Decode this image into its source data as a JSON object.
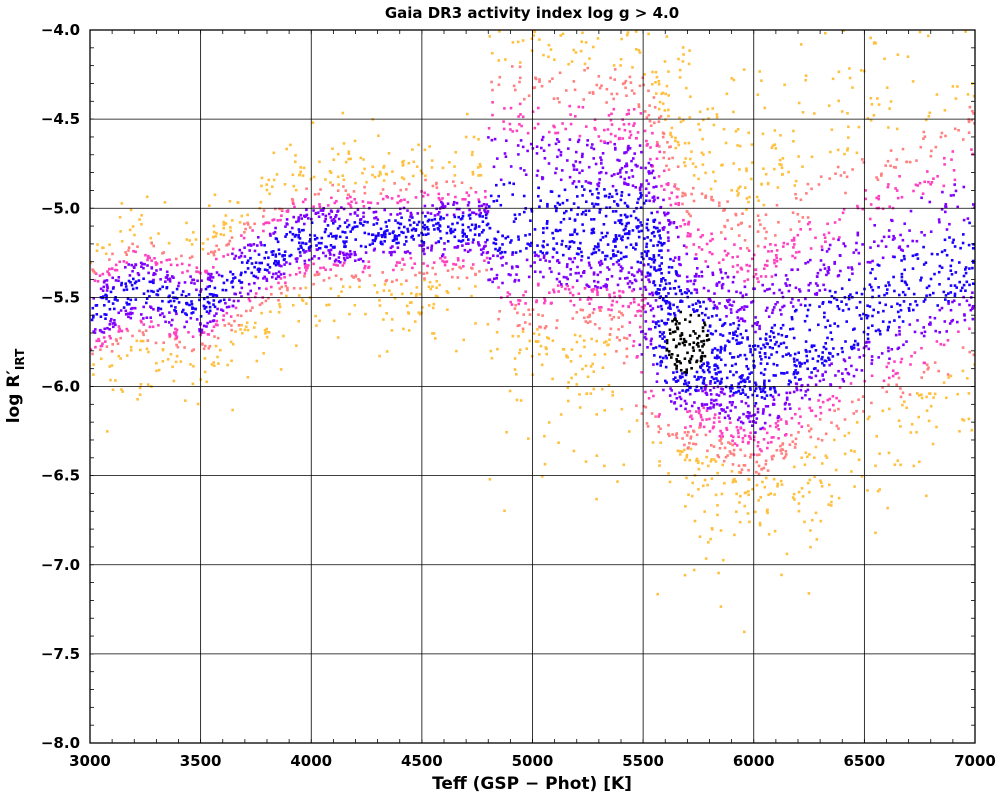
{
  "chart_data": {
    "type": "scatter",
    "title": "Gaia DR3 activity index log g > 4.0",
    "xlabel": "Teff (GSP − Phot) [K]",
    "ylabel": "log R′",
    "ylabel_subscript": "IRT",
    "xlim": [
      3000,
      7000
    ],
    "ylim": [
      -8.0,
      -4.0
    ],
    "x_ticks": [
      3000,
      3500,
      4000,
      4500,
      5000,
      5500,
      6000,
      6500,
      7000
    ],
    "y_ticks": [
      -4.0,
      -4.5,
      -5.0,
      -5.5,
      -6.0,
      -6.5,
      -7.0,
      -7.5,
      -8.0
    ],
    "x_tick_labels": [
      "3000",
      "3500",
      "4000",
      "4500",
      "5000",
      "5500",
      "6000",
      "6500",
      "7000"
    ],
    "y_tick_labels": [
      "−4.0",
      "−4.5",
      "−5.0",
      "−5.5",
      "−6.0",
      "−6.5",
      "−7.0",
      "−7.5",
      "−8.0"
    ],
    "grid": true,
    "density_colormap": [
      "#000000",
      "#1a00ff",
      "#8000ff",
      "#ff40c0",
      "#ff8080",
      "#ffc040"
    ],
    "ridge": {
      "x": [
        3000,
        3200,
        3500,
        3700,
        3900,
        4000,
        4200,
        4500,
        5000,
        5500,
        5700,
        6000,
        6500,
        7000
      ],
      "y": [
        -5.6,
        -5.45,
        -5.55,
        -5.35,
        -5.2,
        -5.15,
        -5.15,
        -5.12,
        -5.1,
        -5.15,
        -5.75,
        -5.95,
        -5.6,
        -5.3
      ]
    },
    "densest_region": {
      "x": 5700,
      "y": -5.75
    }
  }
}
